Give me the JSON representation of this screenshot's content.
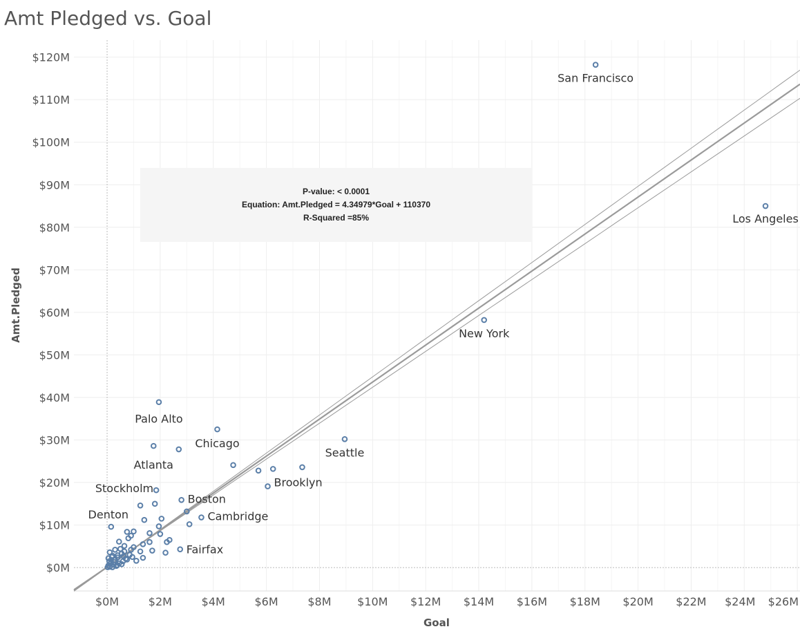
{
  "title": "Amt Pledged vs. Goal",
  "annotation": {
    "p_value": "P-value:  < 0.0001",
    "equation": "Equation:  Amt.Pledged = 4.34979*Goal + 110370",
    "r_squared": "R-Squared =85%"
  },
  "chart_data": {
    "type": "scatter",
    "title": "Amt Pledged vs. Goal",
    "xlabel": "Goal",
    "ylabel": "Amt.Pledged",
    "xlim": [
      -1.25,
      26.1
    ],
    "ylim": [
      -5.5,
      124
    ],
    "x_ticks": [
      0,
      2,
      4,
      6,
      8,
      10,
      12,
      14,
      16,
      18,
      20,
      22,
      24,
      26
    ],
    "x_tick_labels": [
      "$0M",
      "$2M",
      "$4M",
      "$6M",
      "$8M",
      "$10M",
      "$12M",
      "$14M",
      "$16M",
      "$18M",
      "$20M",
      "$22M",
      "$24M",
      "$26M"
    ],
    "y_ticks": [
      0,
      10,
      20,
      30,
      40,
      50,
      60,
      70,
      80,
      90,
      100,
      110,
      120
    ],
    "y_tick_labels": [
      "$0M",
      "$10M",
      "$20M",
      "$30M",
      "$40M",
      "$50M",
      "$60M",
      "$70M",
      "$80M",
      "$90M",
      "$100M",
      "$110M",
      "$120M"
    ],
    "grid": true,
    "trend_line": {
      "slope": 4.34979,
      "intercept": 0.11037
    },
    "colors": {
      "point": "#5b7fa8",
      "trend": "#9a9a9a",
      "grid": "#eeeeee",
      "text": "#555555"
    },
    "points": [
      {
        "x": 18.4,
        "y": 118.2,
        "label": "San Francisco"
      },
      {
        "x": 24.8,
        "y": 85.0,
        "label": "Los Angeles"
      },
      {
        "x": 14.2,
        "y": 58.2,
        "label": "New York"
      },
      {
        "x": 1.95,
        "y": 38.9,
        "label": "Palo Alto"
      },
      {
        "x": 4.15,
        "y": 32.5,
        "label": "Chicago"
      },
      {
        "x": 1.75,
        "y": 28.6,
        "label": "Atlanta"
      },
      {
        "x": 2.7,
        "y": 27.8,
        "label": ""
      },
      {
        "x": 8.95,
        "y": 30.2,
        "label": "Seattle"
      },
      {
        "x": 4.75,
        "y": 24.1,
        "label": ""
      },
      {
        "x": 5.7,
        "y": 22.8,
        "label": ""
      },
      {
        "x": 6.25,
        "y": 23.2,
        "label": ""
      },
      {
        "x": 7.35,
        "y": 23.6,
        "label": ""
      },
      {
        "x": 6.05,
        "y": 19.1,
        "label": "Brooklyn"
      },
      {
        "x": 1.85,
        "y": 18.2,
        "label": "Stockholm"
      },
      {
        "x": 2.8,
        "y": 15.9,
        "label": "Boston"
      },
      {
        "x": 1.8,
        "y": 15.0,
        "label": ""
      },
      {
        "x": 1.25,
        "y": 14.6,
        "label": ""
      },
      {
        "x": 3.0,
        "y": 13.2,
        "label": ""
      },
      {
        "x": 3.55,
        "y": 11.8,
        "label": "Cambridge"
      },
      {
        "x": 2.05,
        "y": 11.5,
        "label": ""
      },
      {
        "x": 1.4,
        "y": 11.2,
        "label": ""
      },
      {
        "x": 3.1,
        "y": 10.2,
        "label": ""
      },
      {
        "x": 0.15,
        "y": 9.6,
        "label": "Denton"
      },
      {
        "x": 1.95,
        "y": 9.7,
        "label": ""
      },
      {
        "x": 1.0,
        "y": 8.5,
        "label": ""
      },
      {
        "x": 0.75,
        "y": 8.4,
        "label": ""
      },
      {
        "x": 1.6,
        "y": 8.1,
        "label": ""
      },
      {
        "x": 2.0,
        "y": 7.9,
        "label": ""
      },
      {
        "x": 0.9,
        "y": 7.5,
        "label": ""
      },
      {
        "x": 0.8,
        "y": 6.9,
        "label": ""
      },
      {
        "x": 2.35,
        "y": 6.5,
        "label": ""
      },
      {
        "x": 2.25,
        "y": 6.0,
        "label": ""
      },
      {
        "x": 0.45,
        "y": 6.1,
        "label": ""
      },
      {
        "x": 1.6,
        "y": 6.0,
        "label": ""
      },
      {
        "x": 1.35,
        "y": 5.5,
        "label": ""
      },
      {
        "x": 0.65,
        "y": 5.1,
        "label": ""
      },
      {
        "x": 1.0,
        "y": 4.8,
        "label": ""
      },
      {
        "x": 2.75,
        "y": 4.3,
        "label": "Fairfax"
      },
      {
        "x": 1.7,
        "y": 4.0,
        "label": ""
      },
      {
        "x": 2.2,
        "y": 3.5,
        "label": ""
      },
      {
        "x": 0.3,
        "y": 4.2,
        "label": ""
      },
      {
        "x": 1.25,
        "y": 3.8,
        "label": ""
      },
      {
        "x": 0.1,
        "y": 3.6,
        "label": ""
      },
      {
        "x": 0.55,
        "y": 3.3,
        "label": ""
      },
      {
        "x": 0.85,
        "y": 3.0,
        "label": ""
      },
      {
        "x": 0.2,
        "y": 2.8,
        "label": ""
      },
      {
        "x": 1.35,
        "y": 2.3,
        "label": ""
      },
      {
        "x": 0.4,
        "y": 2.4,
        "label": ""
      },
      {
        "x": 0.7,
        "y": 2.1,
        "label": ""
      },
      {
        "x": 1.1,
        "y": 1.6,
        "label": ""
      },
      {
        "x": 0.05,
        "y": 2.2,
        "label": ""
      },
      {
        "x": 0.3,
        "y": 1.8,
        "label": ""
      },
      {
        "x": 0.6,
        "y": 1.5,
        "label": ""
      },
      {
        "x": 0.15,
        "y": 1.2,
        "label": ""
      },
      {
        "x": 0.45,
        "y": 1.0,
        "label": ""
      },
      {
        "x": 0.25,
        "y": 0.7,
        "label": ""
      },
      {
        "x": 0.05,
        "y": 0.5,
        "label": ""
      },
      {
        "x": 0.35,
        "y": 0.4,
        "label": ""
      },
      {
        "x": 0.1,
        "y": 0.2,
        "label": ""
      },
      {
        "x": 0.2,
        "y": 0.1,
        "label": ""
      },
      {
        "x": 0.55,
        "y": 0.8,
        "label": ""
      },
      {
        "x": 0.08,
        "y": 1.5,
        "label": ""
      },
      {
        "x": 0.4,
        "y": 2.9,
        "label": ""
      },
      {
        "x": 0.65,
        "y": 3.8,
        "label": ""
      },
      {
        "x": 0.9,
        "y": 4.2,
        "label": ""
      },
      {
        "x": 0.5,
        "y": 4.4,
        "label": ""
      },
      {
        "x": 0.95,
        "y": 2.5,
        "label": ""
      },
      {
        "x": 0.12,
        "y": 0.9,
        "label": ""
      },
      {
        "x": 0.28,
        "y": 1.3,
        "label": ""
      },
      {
        "x": 0.75,
        "y": 1.9,
        "label": ""
      },
      {
        "x": 0.18,
        "y": 2.5,
        "label": ""
      },
      {
        "x": 0.62,
        "y": 2.7,
        "label": ""
      },
      {
        "x": 0.02,
        "y": 0.1,
        "label": ""
      },
      {
        "x": 0.38,
        "y": 0.6,
        "label": ""
      }
    ]
  }
}
